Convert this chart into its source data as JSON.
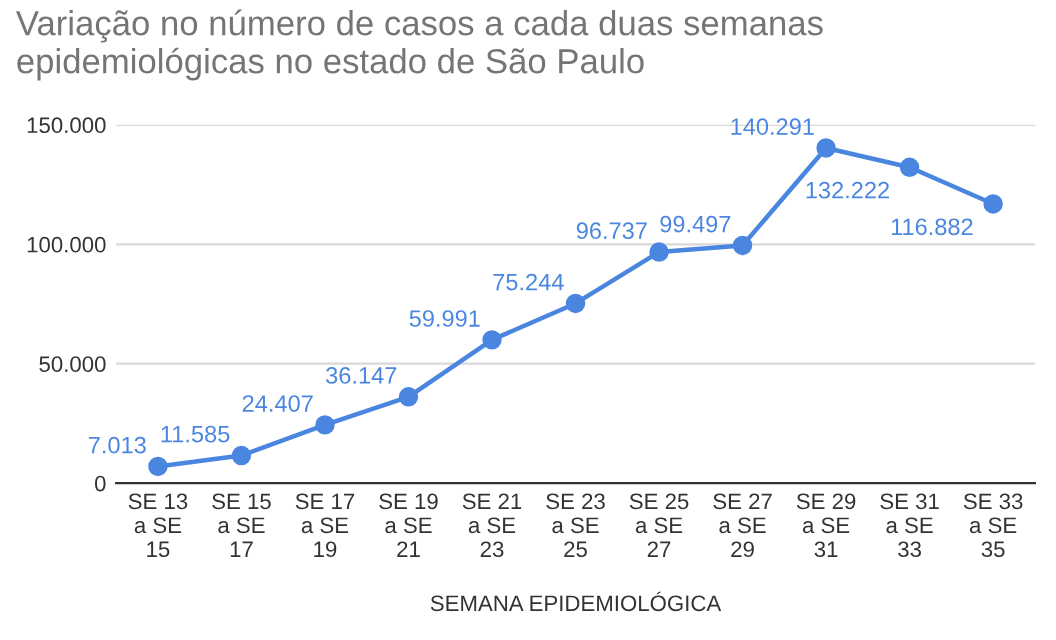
{
  "chart_data": {
    "type": "line",
    "title": "Variação no número de casos a cada duas semanas\nepidemiológicas no estado de São Paulo",
    "xlabel": "SEMANA EPIDEMIOLÓGICA",
    "categories": [
      "SE 13\na SE\n15",
      "SE 15\na SE\n17",
      "SE 17\na SE\n19",
      "SE 19\na SE\n21",
      "SE 21\na SE\n23",
      "SE 23\na SE\n25",
      "SE 25\na SE\n27",
      "SE 27\na SE\n29",
      "SE 29\na SE\n31",
      "SE 31\na SE\n33",
      "SE 33\na SE\n35"
    ],
    "series": [
      {
        "color": "#4a86e0",
        "values": [
          7013,
          11585,
          24407,
          36147,
          59991,
          75244,
          96737,
          99497,
          140291,
          132222,
          116882
        ],
        "value_labels": [
          "7.013",
          "11.585",
          "24.407",
          "36.147",
          "59.991",
          "75.244",
          "96.737",
          "99.497",
          "140.291",
          "132.222",
          "116.882"
        ]
      }
    ],
    "ylim": [
      0,
      150000
    ],
    "yticks": [
      {
        "value": 0,
        "label": "0"
      },
      {
        "value": 50000,
        "label": "50.000"
      },
      {
        "value": 100000,
        "label": "100.000"
      },
      {
        "value": 150000,
        "label": "150.000"
      }
    ],
    "grid": "y",
    "marker": "circle",
    "line_style": "solid",
    "legend": false
  }
}
